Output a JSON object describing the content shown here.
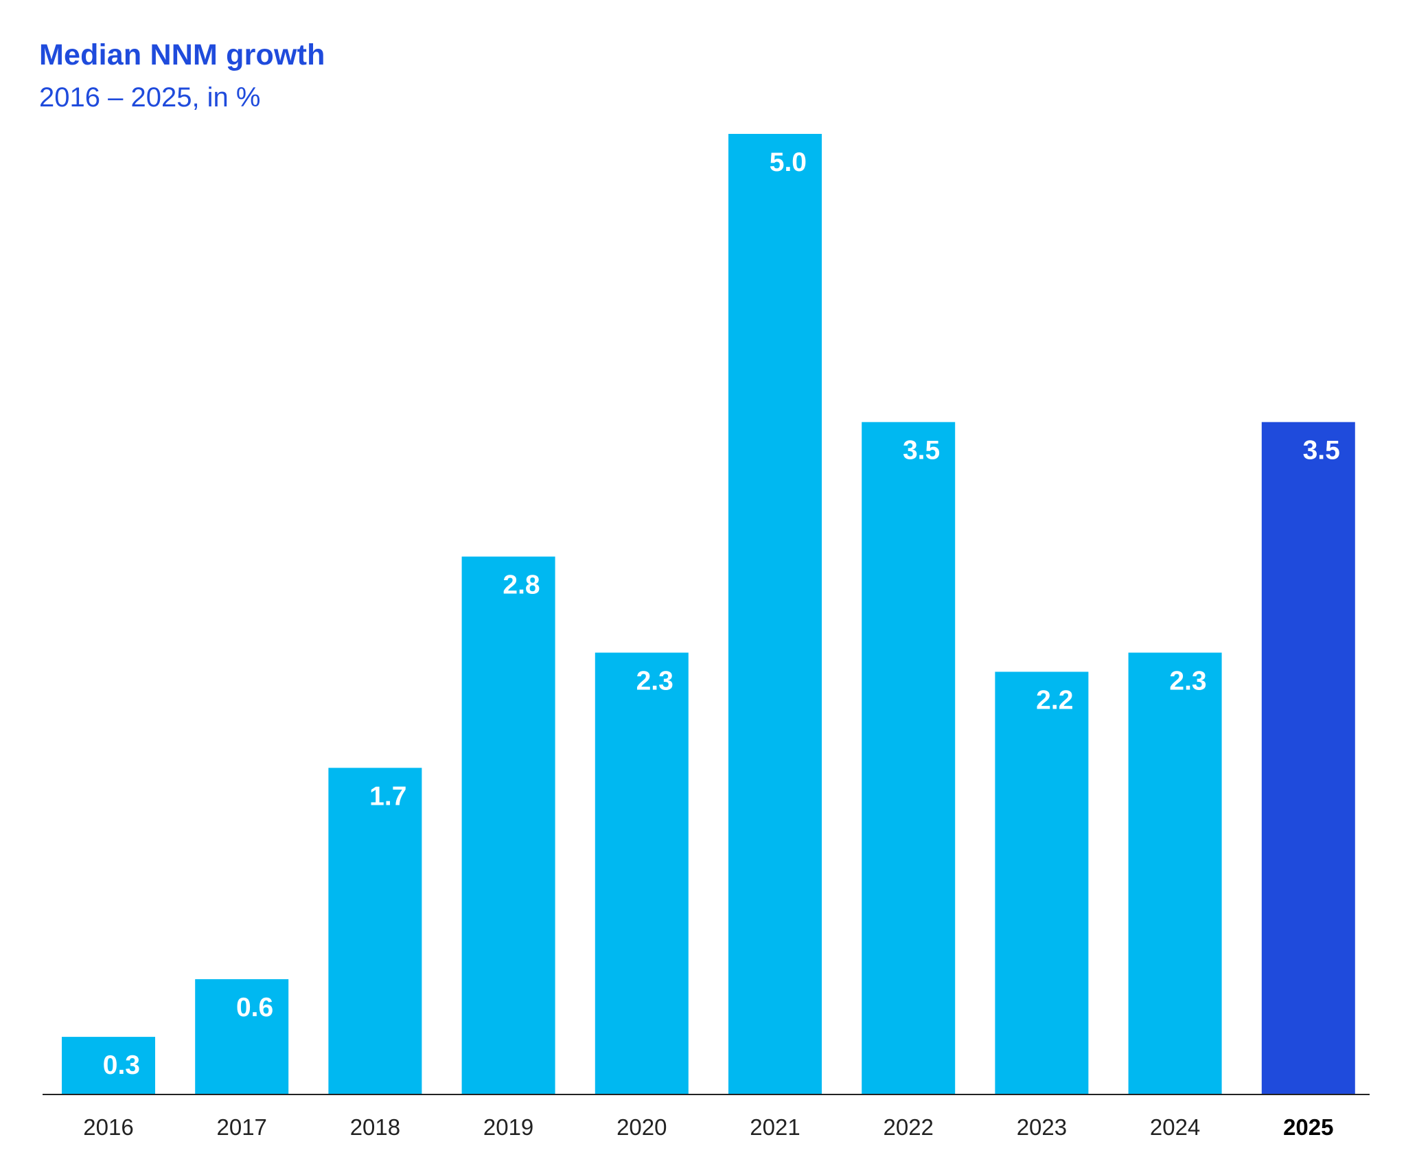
{
  "chart_data": {
    "type": "bar",
    "title": "Median NNM growth",
    "subtitle": "2016 – 2025, in %",
    "categories": [
      "2016",
      "2017",
      "2018",
      "2019",
      "2020",
      "2021",
      "2022",
      "2023",
      "2024",
      "2025"
    ],
    "values": [
      0.3,
      0.6,
      1.7,
      2.8,
      2.3,
      5.0,
      3.5,
      2.2,
      2.3,
      3.5
    ],
    "data_labels": [
      "0.3",
      "0.6",
      "1.7",
      "2.8",
      "2.3",
      "5.0",
      "3.5",
      "2.2",
      "2.3",
      "3.5"
    ],
    "highlight_category": "2025",
    "ylim": [
      0,
      5.0
    ],
    "xlabel": "",
    "ylabel": "",
    "grid": false,
    "colors": {
      "bar": "#00b8f1",
      "highlight_bar": "#1f4bdc",
      "title": "#1f4bdc",
      "baseline": "#222222"
    }
  }
}
